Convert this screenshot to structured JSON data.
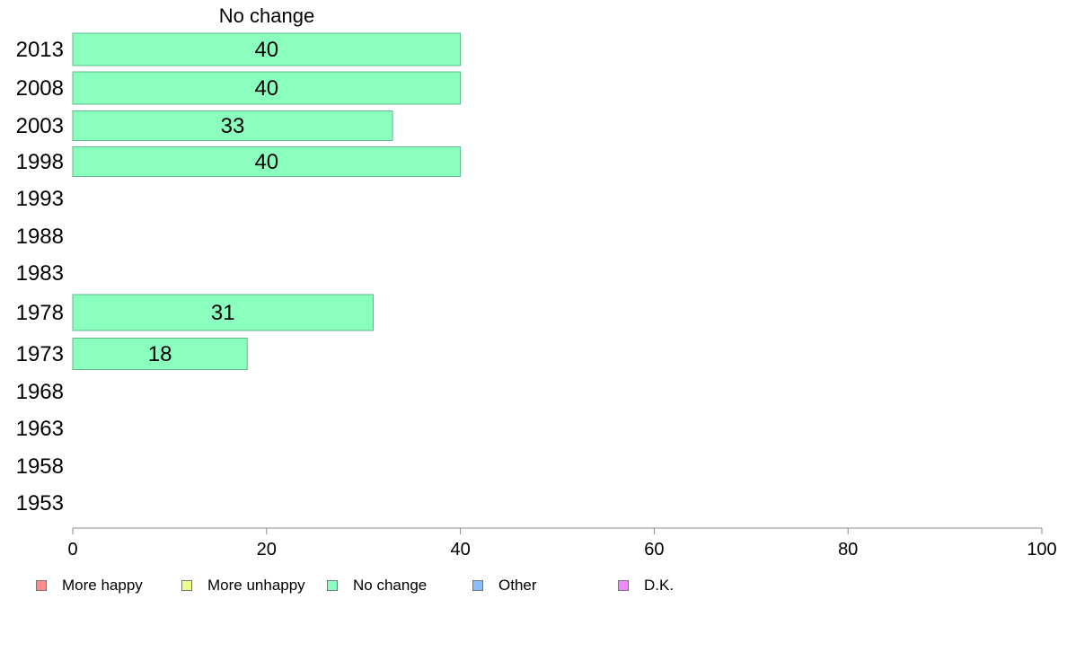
{
  "chart_data": {
    "type": "bar",
    "orientation": "horizontal",
    "title": "No change",
    "categories": [
      "2013",
      "2008",
      "2003",
      "1998",
      "1993",
      "1988",
      "1983",
      "1978",
      "1973",
      "1968",
      "1963",
      "1958",
      "1953"
    ],
    "series": [
      {
        "name": "No change",
        "values": [
          40,
          40,
          33,
          40,
          null,
          null,
          null,
          31,
          18,
          null,
          null,
          null,
          null
        ]
      }
    ],
    "xlim": [
      0,
      100
    ],
    "xticks": [
      0,
      20,
      40,
      60,
      80,
      100
    ],
    "grid": false,
    "legend": {
      "placement": "bottom-left",
      "items": [
        {
          "label": "More happy",
          "color": "#ff8a8a"
        },
        {
          "label": "More unhappy",
          "color": "#ecff8a"
        },
        {
          "label": "No change",
          "color": "#8affbe"
        },
        {
          "label": "Other",
          "color": "#8abaff"
        },
        {
          "label": "D.K.",
          "color": "#f08aff"
        }
      ]
    },
    "colors": {
      "bar_fill": "#8affbe",
      "bar_stroke": "#5fb98a",
      "axis": "#888888"
    }
  }
}
